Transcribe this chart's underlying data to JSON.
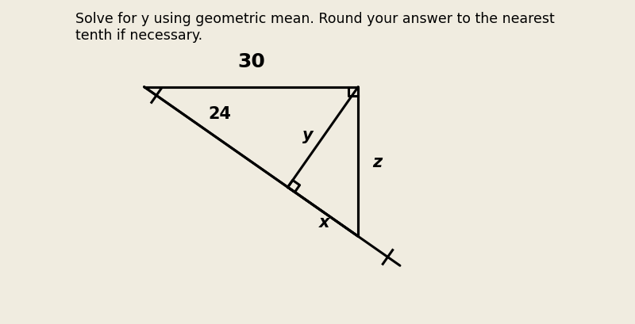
{
  "title_text": "Solve for y using geometric mean. Round your answer to the nearest\ntenth if necessary.",
  "title_fontsize": 12.5,
  "background_color": "#ddeeff",
  "line_color": "#000000",
  "line_width": 2.2,
  "label_30": "30",
  "label_24": "24",
  "label_y": "y",
  "label_x": "x",
  "label_z": "z",
  "label_fontsize": 15
}
